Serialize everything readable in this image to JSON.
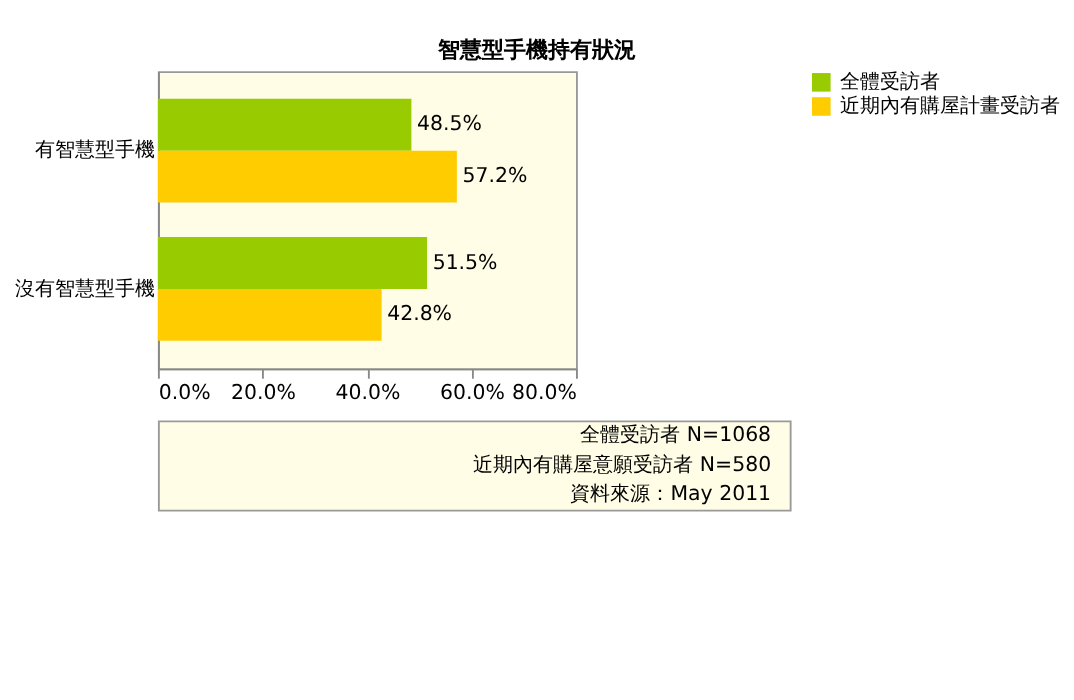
{
  "chart_data": {
    "type": "bar",
    "orientation": "horizontal",
    "title": "智慧型手機持有狀況",
    "categories": [
      "有智慧型手機",
      "沒有智慧型手機"
    ],
    "series": [
      {
        "name": "全體受訪者",
        "color": "#99cc00",
        "values": [
          48.5,
          51.5
        ],
        "value_labels": [
          "48.5%",
          "51.5%"
        ]
      },
      {
        "name": "近期內有購屋計畫受訪者",
        "color": "#ffcc00",
        "values": [
          57.2,
          42.8
        ],
        "value_labels": [
          "57.2%",
          "42.8%"
        ]
      }
    ],
    "xlim": [
      0,
      80
    ],
    "xticks": [
      {
        "value": 0,
        "label": "0.0%"
      },
      {
        "value": 20,
        "label": "20.0%"
      },
      {
        "value": 40,
        "label": "40.0%"
      },
      {
        "value": 60,
        "label": "60.0%"
      },
      {
        "value": 80,
        "label": "80.0%"
      }
    ],
    "grid": false,
    "legend": "right",
    "annotations": [
      "全體受訪者 N=1068",
      "近期內有購屋意願受訪者 N=580",
      "資料來源：May 2011"
    ]
  }
}
